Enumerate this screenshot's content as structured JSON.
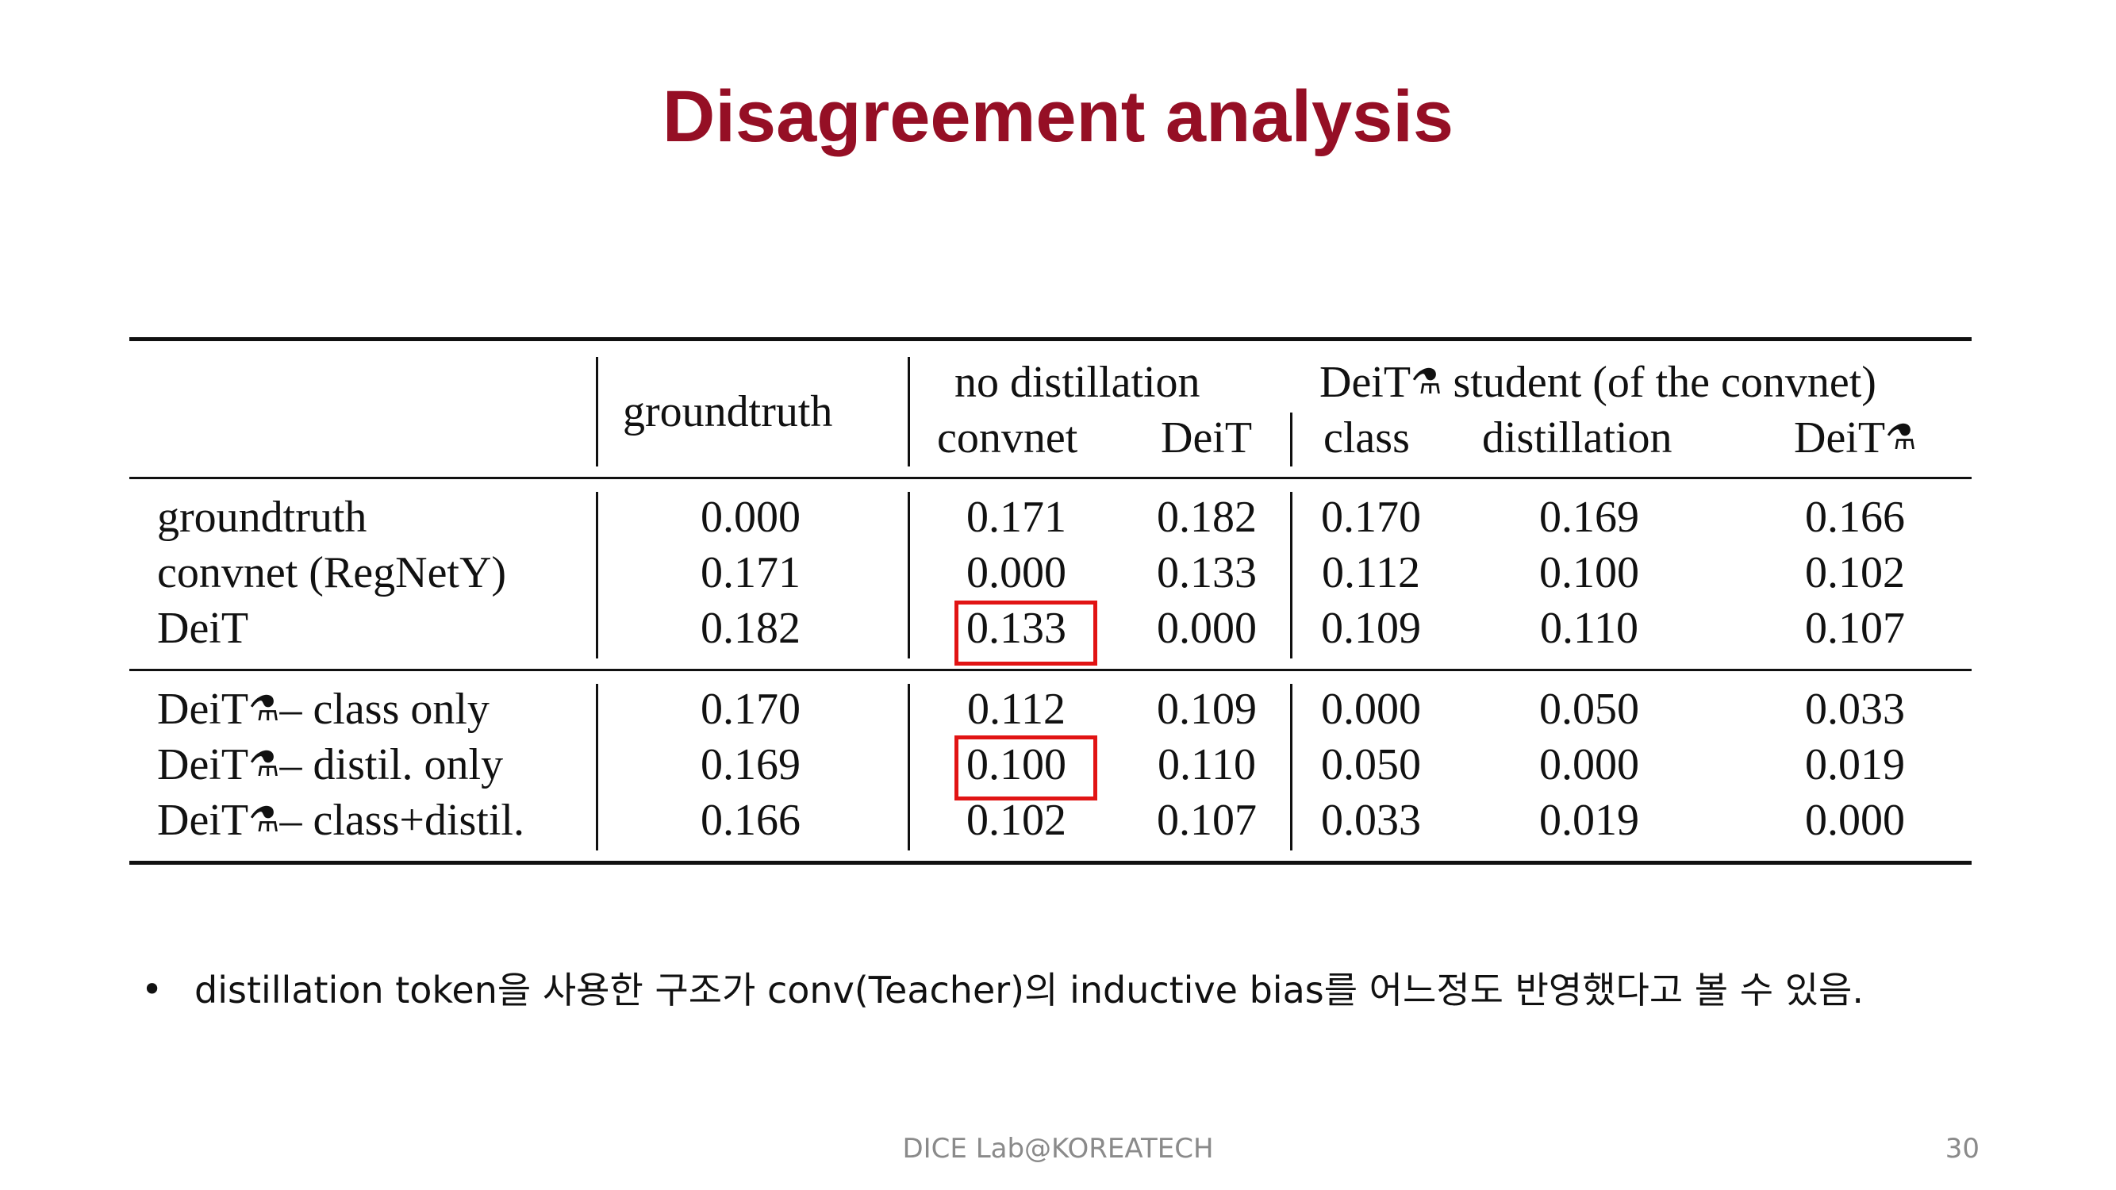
{
  "slide": {
    "title": "Disagreement analysis",
    "footer": "DICE Lab@KOREATECH",
    "page_number": "30",
    "bullet": "distillation token을 사용한 구조가 conv(Teacher)의 inductive bias를 어느정도 반영했다고 볼 수 있음."
  },
  "table": {
    "headers": {
      "groundtruth": "groundtruth",
      "no_distillation": "no distillation",
      "deit_student": "student (of the convnet)",
      "deit_prefix": "DeiT",
      "convnet": "convnet",
      "deit": "DeiT",
      "class": "class",
      "distillation": "distillation",
      "deit_distilled": "DeiT"
    },
    "rows": [
      {
        "label": "groundtruth",
        "values": [
          "0.000",
          "0.171",
          "0.182",
          "0.170",
          "0.169",
          "0.166"
        ]
      },
      {
        "label": "convnet (RegNetY)",
        "values": [
          "0.171",
          "0.000",
          "0.133",
          "0.112",
          "0.100",
          "0.102"
        ]
      },
      {
        "label": "DeiT",
        "values": [
          "0.182",
          "0.133",
          "0.000",
          "0.109",
          "0.110",
          "0.107"
        ]
      },
      {
        "label_prefix": "DeiT",
        "label": "– class only",
        "values": [
          "0.170",
          "0.112",
          "0.109",
          "0.000",
          "0.050",
          "0.033"
        ]
      },
      {
        "label_prefix": "DeiT",
        "label": "– distil. only",
        "values": [
          "0.169",
          "0.100",
          "0.110",
          "0.050",
          "0.000",
          "0.019"
        ]
      },
      {
        "label_prefix": "DeiT",
        "label": "– class+distil.",
        "values": [
          "0.166",
          "0.102",
          "0.107",
          "0.033",
          "0.019",
          "0.000"
        ]
      }
    ],
    "highlight_color": "#E11414"
  }
}
